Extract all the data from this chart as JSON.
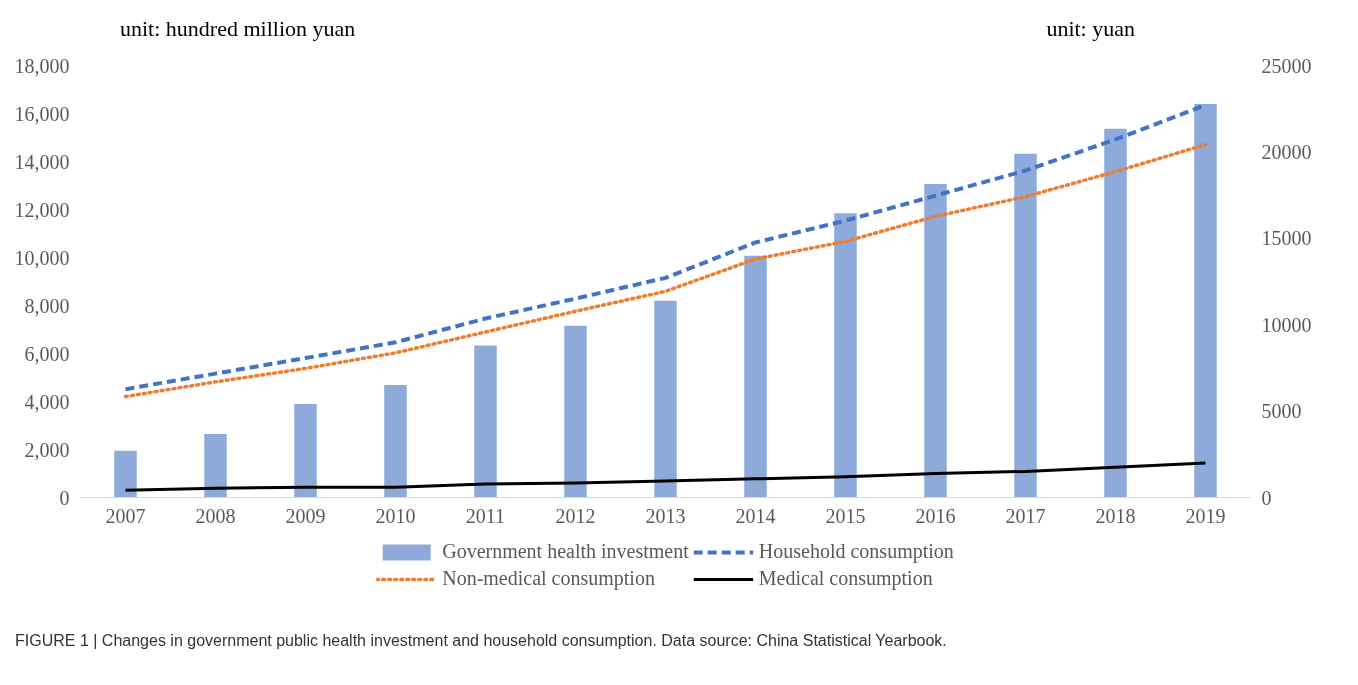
{
  "chart_data": {
    "type": "bar",
    "ylabel": "unit: hundred million yuan",
    "y2label": "unit: yuan",
    "categories": [
      "2007",
      "2008",
      "2009",
      "2010",
      "2011",
      "2012",
      "2013",
      "2014",
      "2015",
      "2016",
      "2017",
      "2018",
      "2019"
    ],
    "series": [
      {
        "name": "Government health investment",
        "color": "#8eaadb",
        "values": [
          1950,
          2650,
          3900,
          4690,
          6330,
          7160,
          8200,
          10070,
          11840,
          13060,
          14320,
          15360,
          16400
        ]
      },
      {
        "name": "Household consumption",
        "type": "line",
        "axis": "y2",
        "color": "#4472c4",
        "line_style": "dashed",
        "values": [
          6270,
          7170,
          8070,
          8980,
          10360,
          11510,
          12710,
          14760,
          16020,
          17470,
          18920,
          20720,
          22710
        ]
      },
      {
        "name": "Non-medical consumption",
        "type": "line",
        "axis": "y2",
        "color": "#ed7d31",
        "line_style": "dotted",
        "values": [
          5840,
          6690,
          7470,
          8370,
          9580,
          10780,
          11930,
          13800,
          14820,
          16270,
          17410,
          18860,
          20420
        ]
      },
      {
        "name": "Medical consumption",
        "type": "line",
        "axis": "y2",
        "color": "#000000",
        "line_style": "solid",
        "values": [
          420,
          540,
          600,
          600,
          780,
          840,
          960,
          1080,
          1200,
          1390,
          1510,
          1750,
          1990
        ]
      }
    ],
    "ylim": [
      0,
      18000
    ],
    "yticks": [
      0,
      {
        "value": 2000,
        "label": "2,000"
      },
      {
        "value": 4000,
        "label": "4,000"
      },
      {
        "value": 6000,
        "label": "6,000"
      },
      {
        "value": 8000,
        "label": "8,000"
      },
      {
        "value": 10000,
        "label": "10,000"
      },
      {
        "value": 12000,
        "label": "12,000"
      },
      {
        "value": 14000,
        "label": "14,000"
      },
      {
        "value": 16000,
        "label": "16,000"
      },
      {
        "value": 18000,
        "label": "18,000"
      }
    ],
    "y2lim": [
      0,
      25000
    ],
    "y2ticks": [
      0,
      5000,
      10000,
      15000,
      20000,
      25000
    ],
    "grid": false,
    "legend": "bottom",
    "annotations": [
      "FIGURE 1 | Changes in government public health investment and household consumption. Data source: China Statistical Yearbook."
    ]
  }
}
